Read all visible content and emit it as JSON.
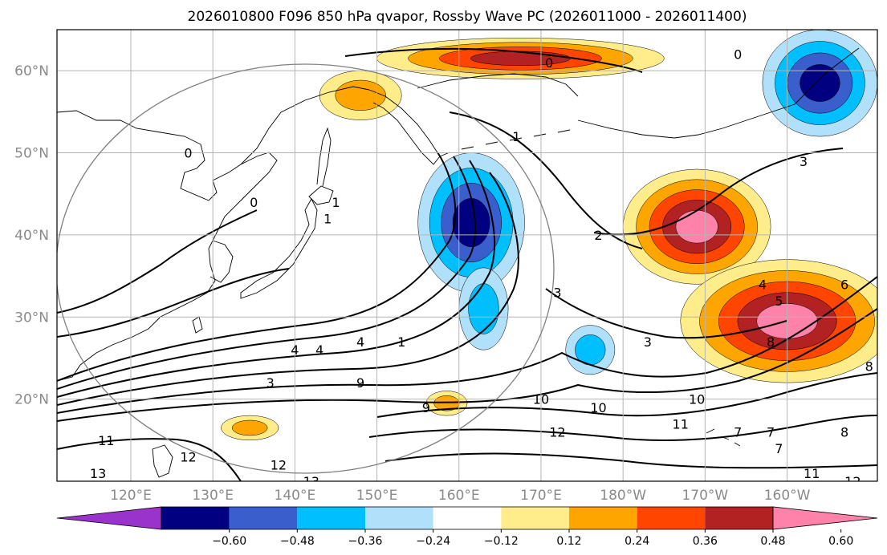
{
  "chart_data": {
    "type": "heatmap",
    "title": "2026010800 F096 850 hPa qvapor, Rossby Wave PC (2026011000 - 2026011400)",
    "projection": "plate carree",
    "lon_range": [
      111,
      211
    ],
    "lat_range": [
      10,
      65
    ],
    "x_ticks": [
      {
        "lon": 120,
        "label": "120°E"
      },
      {
        "lon": 130,
        "label": "130°E"
      },
      {
        "lon": 140,
        "label": "140°E"
      },
      {
        "lon": 150,
        "label": "150°E"
      },
      {
        "lon": 160,
        "label": "160°E"
      },
      {
        "lon": 170,
        "label": "170°E"
      },
      {
        "lon": 180,
        "label": "180°W"
      },
      {
        "lon": 190,
        "label": "170°W"
      },
      {
        "lon": 200,
        "label": "160°W"
      }
    ],
    "y_ticks": [
      {
        "lat": 20,
        "label": "20°N"
      },
      {
        "lat": 30,
        "label": "30°N"
      },
      {
        "lat": 40,
        "label": "40°N"
      },
      {
        "lat": 50,
        "label": "50°N"
      },
      {
        "lat": 60,
        "label": "60°N"
      }
    ],
    "grid": true,
    "colorbar": {
      "levels": [
        -0.72,
        -0.6,
        -0.48,
        -0.36,
        -0.24,
        -0.12,
        0.12,
        0.24,
        0.36,
        0.48,
        0.6,
        0.72
      ],
      "colors": [
        "#9933cc",
        "#000080",
        "#3a5fcd",
        "#00bfff",
        "#b0e0fa",
        "#ffffff",
        "#ffec8b",
        "#ffa500",
        "#ff4500",
        "#b22222",
        "#ff82ab"
      ],
      "tick_labels": [
        "−0.60",
        "−0.48",
        "−0.36",
        "−0.24",
        "−0.12",
        "0.12",
        "0.24",
        "0.36",
        "0.48",
        "0.60"
      ],
      "tick_values": [
        -0.6,
        -0.48,
        -0.36,
        -0.24,
        -0.12,
        0.12,
        0.24,
        0.36,
        0.48,
        0.6
      ],
      "extend": "both",
      "placement": "bottom"
    },
    "shaded_anomalies": [
      {
        "name": "north-pacific-positive",
        "value": 0.6,
        "lon": [
          150,
          185
        ],
        "lat": [
          59,
          64
        ]
      },
      {
        "name": "kamchatka-positive",
        "value": 0.36,
        "lon": [
          143,
          153
        ],
        "lat": [
          54,
          60
        ]
      },
      {
        "name": "japan-trough-negative",
        "value": -0.6,
        "lon": [
          155,
          168
        ],
        "lat": [
          33,
          50
        ]
      },
      {
        "name": "east-pacific-negative-strip",
        "value": -0.36,
        "lon": [
          160,
          166
        ],
        "lat": [
          26,
          36
        ]
      },
      {
        "name": "aleutian-negative",
        "value": -0.6,
        "lon": [
          197,
          211
        ],
        "lat": [
          52,
          65
        ]
      },
      {
        "name": "central-pacific-positive",
        "value": 0.72,
        "lon": [
          180,
          198
        ],
        "lat": [
          34,
          48
        ]
      },
      {
        "name": "subtropical-positive-band",
        "value": 0.72,
        "lon": [
          187,
          213
        ],
        "lat": [
          22,
          37
        ]
      },
      {
        "name": "hawaii-positive",
        "value": 0.36,
        "lon": [
          156,
          161
        ],
        "lat": [
          18,
          21
        ]
      },
      {
        "name": "western-positive",
        "value": 0.36,
        "lon": [
          131,
          138
        ],
        "lat": [
          15,
          18
        ]
      },
      {
        "name": "dateline-negative",
        "value": -0.36,
        "lon": [
          173,
          179
        ],
        "lat": [
          23,
          29
        ]
      }
    ],
    "contour_labels": [
      {
        "text": "0",
        "lon": 127,
        "lat": 50
      },
      {
        "text": "0",
        "lon": 135,
        "lat": 44
      },
      {
        "text": "1",
        "lon": 144,
        "lat": 42
      },
      {
        "text": "1",
        "lon": 145,
        "lat": 44
      },
      {
        "text": "0",
        "lon": 171,
        "lat": 61
      },
      {
        "text": "0",
        "lon": 194,
        "lat": 62
      },
      {
        "text": "1",
        "lon": 167,
        "lat": 52
      },
      {
        "text": "2",
        "lon": 177,
        "lat": 40
      },
      {
        "text": "3",
        "lon": 172,
        "lat": 33
      },
      {
        "text": "3",
        "lon": 183,
        "lat": 27
      },
      {
        "text": "3",
        "lon": 202,
        "lat": 49
      },
      {
        "text": "4",
        "lon": 140,
        "lat": 26
      },
      {
        "text": "4",
        "lon": 143,
        "lat": 26
      },
      {
        "text": "4",
        "lon": 148,
        "lat": 27
      },
      {
        "text": "1",
        "lon": 153,
        "lat": 27
      },
      {
        "text": "3",
        "lon": 137,
        "lat": 22
      },
      {
        "text": "9",
        "lon": 148,
        "lat": 22
      },
      {
        "text": "9",
        "lon": 156,
        "lat": 19
      },
      {
        "text": "10",
        "lon": 170,
        "lat": 20
      },
      {
        "text": "10",
        "lon": 177,
        "lat": 19
      },
      {
        "text": "10",
        "lon": 189,
        "lat": 20
      },
      {
        "text": "12",
        "lon": 172,
        "lat": 16
      },
      {
        "text": "11",
        "lon": 187,
        "lat": 17
      },
      {
        "text": "4",
        "lon": 197,
        "lat": 34
      },
      {
        "text": "5",
        "lon": 199,
        "lat": 32
      },
      {
        "text": "6",
        "lon": 207,
        "lat": 34
      },
      {
        "text": "8",
        "lon": 198,
        "lat": 27
      },
      {
        "text": "8",
        "lon": 210,
        "lat": 24
      },
      {
        "text": "7",
        "lon": 194,
        "lat": 16
      },
      {
        "text": "7",
        "lon": 198,
        "lat": 16
      },
      {
        "text": "7",
        "lon": 199,
        "lat": 14
      },
      {
        "text": "8",
        "lon": 207,
        "lat": 16
      },
      {
        "text": "11",
        "lon": 117,
        "lat": 15
      },
      {
        "text": "13",
        "lon": 116,
        "lat": 11
      },
      {
        "text": "12",
        "lon": 138,
        "lat": 12
      },
      {
        "text": "13",
        "lon": 142,
        "lat": 10
      },
      {
        "text": "12",
        "lon": 127,
        "lat": 13
      },
      {
        "text": "11",
        "lon": 203,
        "lat": 11
      },
      {
        "text": "12",
        "lon": 208,
        "lat": 10
      }
    ]
  }
}
